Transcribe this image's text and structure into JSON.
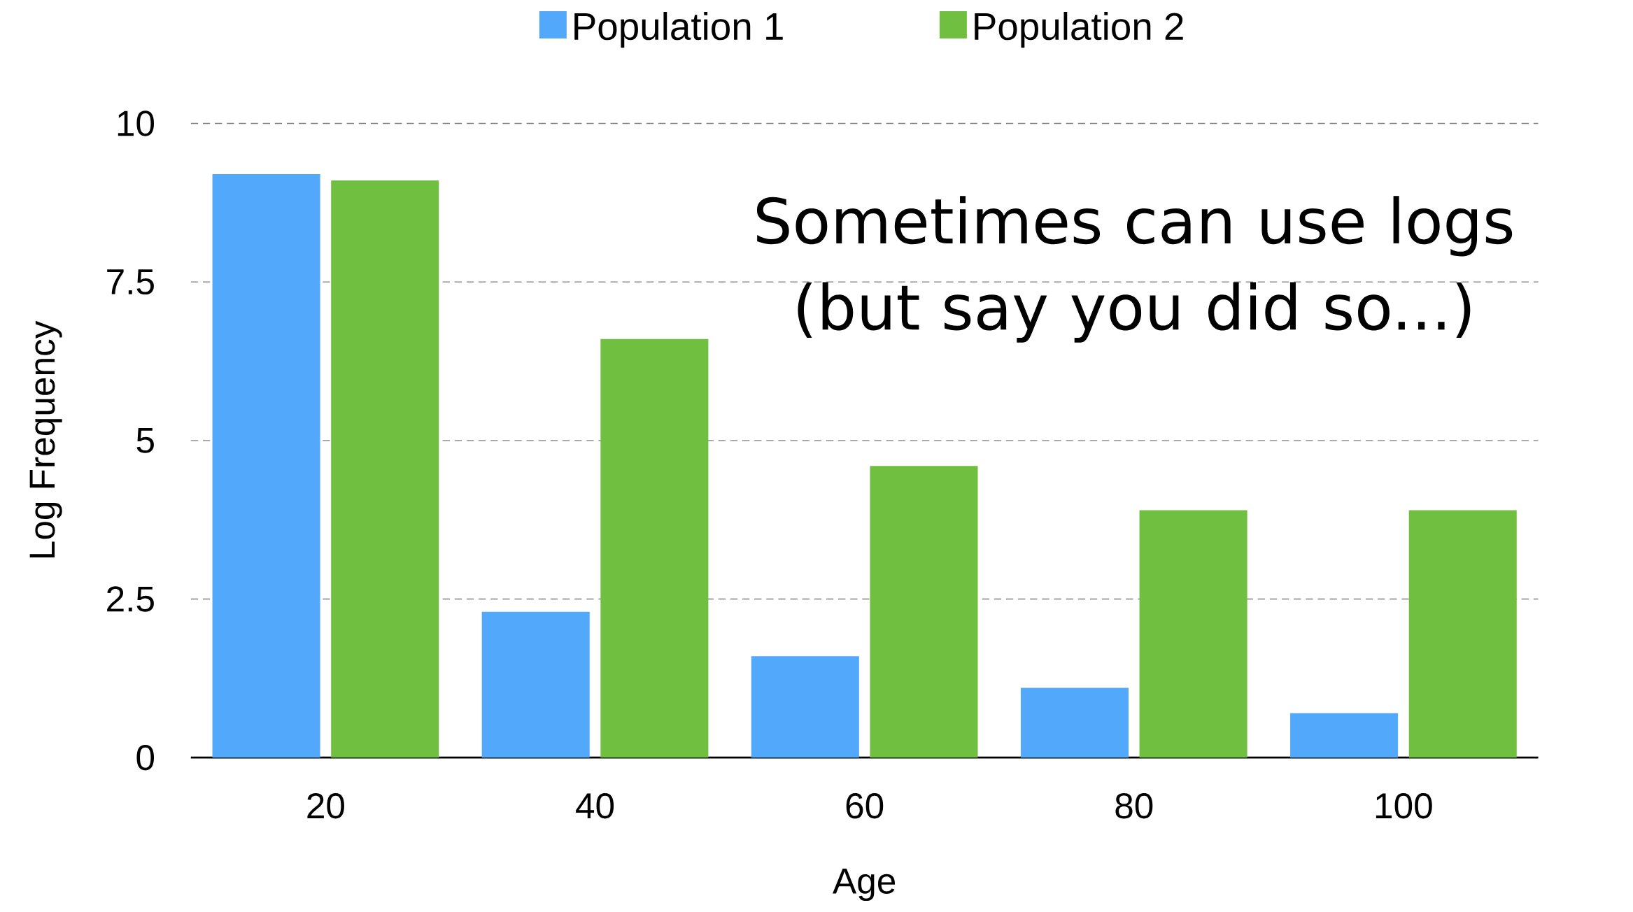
{
  "chart_data": {
    "type": "bar",
    "xlabel": "Age",
    "ylabel": "Log Frequency",
    "categories": [
      "20",
      "40",
      "60",
      "80",
      "100"
    ],
    "series": [
      {
        "name": "Population 1",
        "color": "#52a8fa",
        "values": [
          9.2,
          2.3,
          1.6,
          1.1,
          0.7
        ]
      },
      {
        "name": "Population 2",
        "color": "#70bf41",
        "values": [
          9.1,
          6.6,
          4.6,
          3.9,
          3.9
        ]
      }
    ],
    "ylim": [
      0,
      10
    ],
    "yticks": [
      0,
      2.5,
      5,
      7.5,
      10
    ],
    "grid": "y",
    "legend": "top",
    "annotations": [
      "Sometimes can use logs (but say you did so...)"
    ]
  }
}
